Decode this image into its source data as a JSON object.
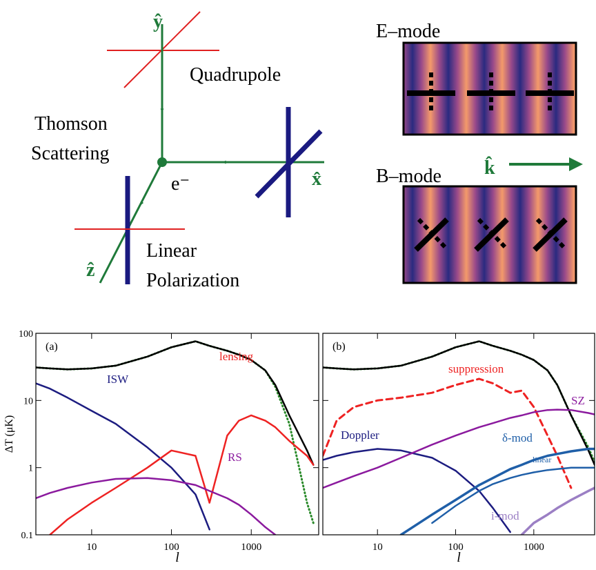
{
  "diagram": {
    "y_hat": "ŷ",
    "x_hat": "x̂",
    "z_hat": "ẑ",
    "quadrupole": "Quadrupole",
    "thomson": "Thomson",
    "scattering": "Scattering",
    "electron": "e⁻",
    "linear": "Linear",
    "polarization": "Polarization",
    "e_mode": "E–mode",
    "b_mode": "B–mode",
    "k_hat": "k̂"
  },
  "chart_data": [
    {
      "type": "line",
      "panel_label": "(a)",
      "x_label": "l",
      "y_label": "ΔT (μK)",
      "xscale": "log",
      "yscale": "log",
      "xlim": [
        2,
        7000
      ],
      "ylim": [
        0.1,
        100
      ],
      "xticks": [
        10,
        100,
        1000
      ],
      "yticks": [
        0.1,
        1,
        10,
        100
      ],
      "ytick_labels": true,
      "x": [
        2,
        3,
        5,
        10,
        20,
        50,
        100,
        200,
        300,
        500,
        700,
        1000,
        1500,
        2000,
        3000,
        5000,
        6000
      ],
      "series": [
        {
          "color": "#2a8a2a",
          "style": "dotted",
          "values": [
            31,
            30,
            29,
            30,
            33,
            45,
            62,
            76,
            65,
            55,
            48,
            40,
            28,
            16,
            4.5,
            0.3,
            0.15
          ]
        },
        {
          "color": "#000000",
          "style": "solid",
          "values": [
            31,
            30,
            29,
            30,
            33,
            45,
            62,
            76,
            65,
            55,
            48,
            40,
            28,
            17,
            6,
            1.8,
            1.1
          ]
        },
        {
          "name": "ISW",
          "color": "#1c1c80",
          "style": "solid",
          "values": [
            18,
            15,
            11,
            7,
            4.5,
            2.0,
            1.0,
            0.4,
            0.12,
            null,
            null,
            null,
            null,
            null,
            null,
            null,
            null
          ]
        },
        {
          "name": "lensing",
          "color": "#ee2222",
          "style": "solid",
          "values": [
            null,
            0.1,
            0.17,
            0.3,
            0.5,
            1.0,
            1.8,
            1.5,
            0.3,
            3,
            5,
            6,
            5,
            4,
            2.5,
            1.5,
            1.1
          ]
        },
        {
          "name": "RS",
          "color": "#8b1a9e",
          "style": "solid",
          "values": [
            0.35,
            0.42,
            0.5,
            0.6,
            0.68,
            0.7,
            0.65,
            0.55,
            0.45,
            0.35,
            0.28,
            0.2,
            0.13,
            0.1,
            null,
            null,
            null
          ]
        }
      ]
    },
    {
      "type": "line",
      "panel_label": "(b)",
      "x_label": "l",
      "xscale": "log",
      "yscale": "log",
      "xlim": [
        2,
        6000
      ],
      "ylim": [
        0.1,
        100
      ],
      "xticks": [
        10,
        100,
        1000
      ],
      "yticks": [
        0.1,
        1,
        10,
        100
      ],
      "ytick_labels": false,
      "x": [
        2,
        3,
        5,
        10,
        20,
        50,
        100,
        200,
        300,
        500,
        700,
        1000,
        1500,
        2000,
        3000,
        5000,
        6000
      ],
      "series": [
        {
          "color": "#2a8a2a",
          "style": "dotted",
          "values": [
            31,
            30,
            29,
            30,
            33,
            45,
            62,
            76,
            65,
            55,
            48,
            40,
            28,
            17,
            6,
            2,
            1.2
          ]
        },
        {
          "color": "#000000",
          "style": "solid",
          "values": [
            31,
            30,
            29,
            30,
            33,
            45,
            62,
            76,
            65,
            55,
            48,
            40,
            28,
            17,
            6,
            1.8,
            1.1
          ]
        },
        {
          "name": "suppression",
          "color": "#ee2222",
          "style": "dashed",
          "values": [
            1.5,
            5,
            8,
            10,
            11,
            13,
            17,
            21,
            18,
            13,
            14,
            8,
            3,
            1.5,
            0.5,
            null,
            null
          ]
        },
        {
          "name": "Doppler",
          "color": "#1c1c80",
          "style": "solid",
          "values": [
            1.3,
            1.5,
            1.7,
            1.9,
            1.8,
            1.4,
            0.9,
            0.45,
            0.25,
            0.11,
            null,
            null,
            null,
            null,
            null,
            null,
            null
          ]
        },
        {
          "name": "SZ",
          "color": "#8b1a9e",
          "style": "solid",
          "values": [
            0.5,
            0.6,
            0.75,
            1,
            1.4,
            2.2,
            3,
            4,
            4.6,
            5.5,
            6,
            6.7,
            7.2,
            7.3,
            7.2,
            6.5,
            6.2
          ]
        },
        {
          "name": "δ-mod",
          "color": "#1f5fa8",
          "style": "thick",
          "values": [
            null,
            null,
            null,
            null,
            0.1,
            0.2,
            0.33,
            0.55,
            0.7,
            0.95,
            1.1,
            1.3,
            1.5,
            1.6,
            1.75,
            1.9,
            1.9
          ]
        },
        {
          "name": "linear",
          "color": "#1f5fa8",
          "style": "solid",
          "values": [
            null,
            null,
            null,
            null,
            null,
            0.15,
            0.27,
            0.45,
            0.57,
            0.7,
            0.78,
            0.85,
            0.92,
            0.95,
            1,
            1,
            1
          ]
        },
        {
          "name": "i-mod",
          "color": "#9b7fc4",
          "style": "thick",
          "values": [
            null,
            null,
            null,
            null,
            null,
            null,
            null,
            null,
            null,
            null,
            0.1,
            0.15,
            0.2,
            0.25,
            0.33,
            0.45,
            0.5
          ]
        }
      ]
    }
  ]
}
